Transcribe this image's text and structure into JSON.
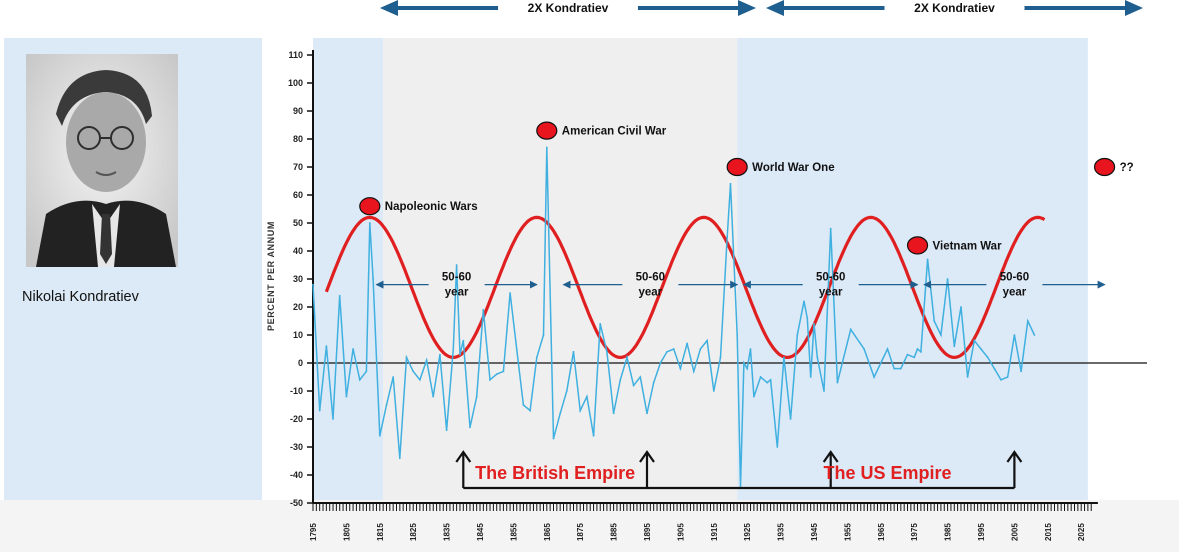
{
  "portrait": {
    "caption": "Nikolai Kondratiev"
  },
  "top_arrows": [
    {
      "label": "2X Kondratiev"
    },
    {
      "label": "2X Kondratiev"
    }
  ],
  "colors": {
    "series": "#3fb0e0",
    "sine": "#e02020",
    "marker": "#e8141e",
    "arrow_top": "#1f5f8f",
    "band_blue": "#dce9f6",
    "band_grey": "#efefef",
    "empire_text": "#e02020"
  },
  "chart_data": {
    "type": "line",
    "ylabel": "PERCENT PER ANNUM",
    "ylim": [
      -50,
      110
    ],
    "yticks": [
      110,
      100,
      90,
      80,
      70,
      60,
      50,
      40,
      30,
      20,
      10,
      0,
      -10,
      -20,
      -30,
      -40,
      -50
    ],
    "xlim": [
      1795,
      2030
    ],
    "xticks": [
      1795,
      1805,
      1815,
      1825,
      1835,
      1845,
      1855,
      1865,
      1875,
      1885,
      1895,
      1905,
      1915,
      1925,
      1935,
      1945,
      1955,
      1965,
      1975,
      1985,
      1995,
      2005,
      2015,
      2025
    ],
    "bands": [
      {
        "from": 1795,
        "to": 1816,
        "color": "blue"
      },
      {
        "from": 1816,
        "to": 1922,
        "color": "grey"
      },
      {
        "from": 1922,
        "to": 2027,
        "color": "blue"
      }
    ],
    "series": [
      {
        "x": [
          1795,
          1797,
          1799,
          1801,
          1803,
          1805,
          1807,
          1809,
          1811,
          1812,
          1813,
          1815,
          1817,
          1819,
          1821,
          1823,
          1825,
          1827,
          1829,
          1831,
          1833,
          1835,
          1837,
          1838,
          1839,
          1840,
          1842,
          1844,
          1846,
          1848,
          1850,
          1852,
          1854,
          1856,
          1858,
          1860,
          1862,
          1864,
          1865,
          1867,
          1869,
          1871,
          1873,
          1875,
          1877,
          1879,
          1881,
          1883,
          1885,
          1887,
          1889,
          1891,
          1893,
          1895,
          1897,
          1899,
          1901,
          1903,
          1905,
          1907,
          1909,
          1911,
          1913,
          1915,
          1917,
          1919,
          1920,
          1922,
          1923,
          1924,
          1925,
          1926,
          1927,
          1929,
          1931,
          1932,
          1934,
          1936,
          1938,
          1940,
          1942,
          1943,
          1944,
          1945,
          1946,
          1948,
          1950,
          1952,
          1956,
          1960,
          1963,
          1967,
          1969,
          1971,
          1973,
          1975,
          1976,
          1977,
          1979,
          1981,
          1983,
          1985,
          1987,
          1989,
          1991,
          1993,
          1995,
          1997,
          1999,
          2001,
          2003,
          2005,
          2007,
          2009,
          2011
        ],
        "y": [
          28,
          -17,
          6,
          -20,
          24,
          -12,
          5,
          -6,
          -3,
          50,
          30,
          -26,
          -15,
          -5,
          -34,
          2,
          -3,
          -6,
          1,
          -12,
          3,
          -24,
          5,
          35,
          3,
          8,
          -23,
          -12,
          19,
          -6,
          -4,
          -3,
          25,
          5,
          -15,
          -17,
          2,
          10,
          77,
          -27,
          -18,
          -10,
          4,
          -17,
          -12,
          -26,
          14,
          4,
          -18,
          -6,
          2,
          -8,
          -5,
          -18,
          -7,
          0,
          4,
          5,
          -2,
          7,
          -3,
          5,
          8,
          -10,
          2,
          45,
          64,
          10,
          -44,
          0,
          -2,
          5,
          -12,
          -5,
          -7,
          -6,
          -30,
          2,
          -20,
          10,
          22,
          16,
          -5,
          14,
          2,
          -10,
          48,
          -7,
          12,
          5,
          -5,
          5,
          -2,
          -2,
          3,
          2,
          5,
          4,
          37,
          15,
          10,
          30,
          6,
          20,
          -5,
          8,
          5,
          2,
          -2,
          -6,
          -5,
          10,
          -3,
          15,
          10
        ]
      }
    ],
    "sine": {
      "period_years": 50,
      "peak_years": [
        1812,
        1862,
        1912,
        1962
      ],
      "peak_value": 52,
      "trough_value": 2,
      "from": 1799,
      "to": 2014
    },
    "events": [
      {
        "label": "Napoleonic Wars",
        "x": 1812,
        "y": 56
      },
      {
        "label": "American Civil War",
        "x": 1865,
        "y": 83
      },
      {
        "label": "World War One",
        "x": 1922,
        "y": 70
      },
      {
        "label": "Vietnam War",
        "x": 1976,
        "y": 42
      },
      {
        "label": "??",
        "x": 2032,
        "y": 70
      }
    ],
    "cycle_labels": [
      {
        "line1": "50-60",
        "line2": "year",
        "from": 1814,
        "to": 1862,
        "y": 28
      },
      {
        "line1": "50-60",
        "line2": "year",
        "from": 1870,
        "to": 1922,
        "y": 28
      },
      {
        "line1": "50-60",
        "line2": "year",
        "from": 1924,
        "to": 1976,
        "y": 28
      },
      {
        "line1": "50-60",
        "line2": "year",
        "from": 1978,
        "to": 2032,
        "y": 28
      }
    ],
    "empires": [
      {
        "label": "The British Empire",
        "from": 1840,
        "to": 1895
      },
      {
        "label": "The US Empire",
        "from": 1895,
        "to": 2005
      }
    ],
    "empire_arrow_years": [
      1840,
      1895,
      1950,
      2005
    ]
  }
}
